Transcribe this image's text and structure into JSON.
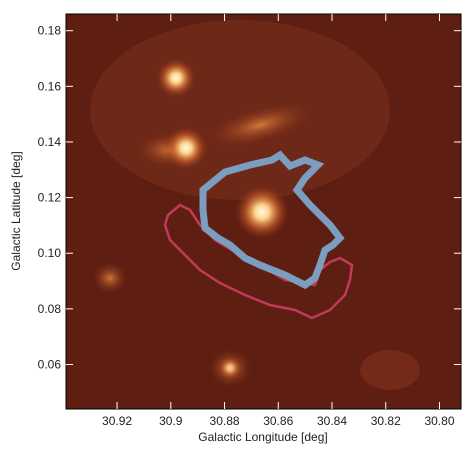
{
  "chart_data": {
    "type": "image",
    "xlabel": "Galactic Longitude [deg]",
    "ylabel": "Galactic Latitude [deg]",
    "xlim": [
      30.939,
      30.792
    ],
    "ylim": [
      0.044,
      0.186
    ],
    "xticks": [
      30.92,
      30.9,
      30.88,
      30.86,
      30.84,
      30.82,
      {
        "value": 30.8,
        "label": "30.80"
      }
    ],
    "yticks": [
      0.06,
      0.08,
      {
        "value": 0.1,
        "label": "0.10"
      },
      0.12,
      0.14,
      0.16,
      0.18
    ]
  }
}
